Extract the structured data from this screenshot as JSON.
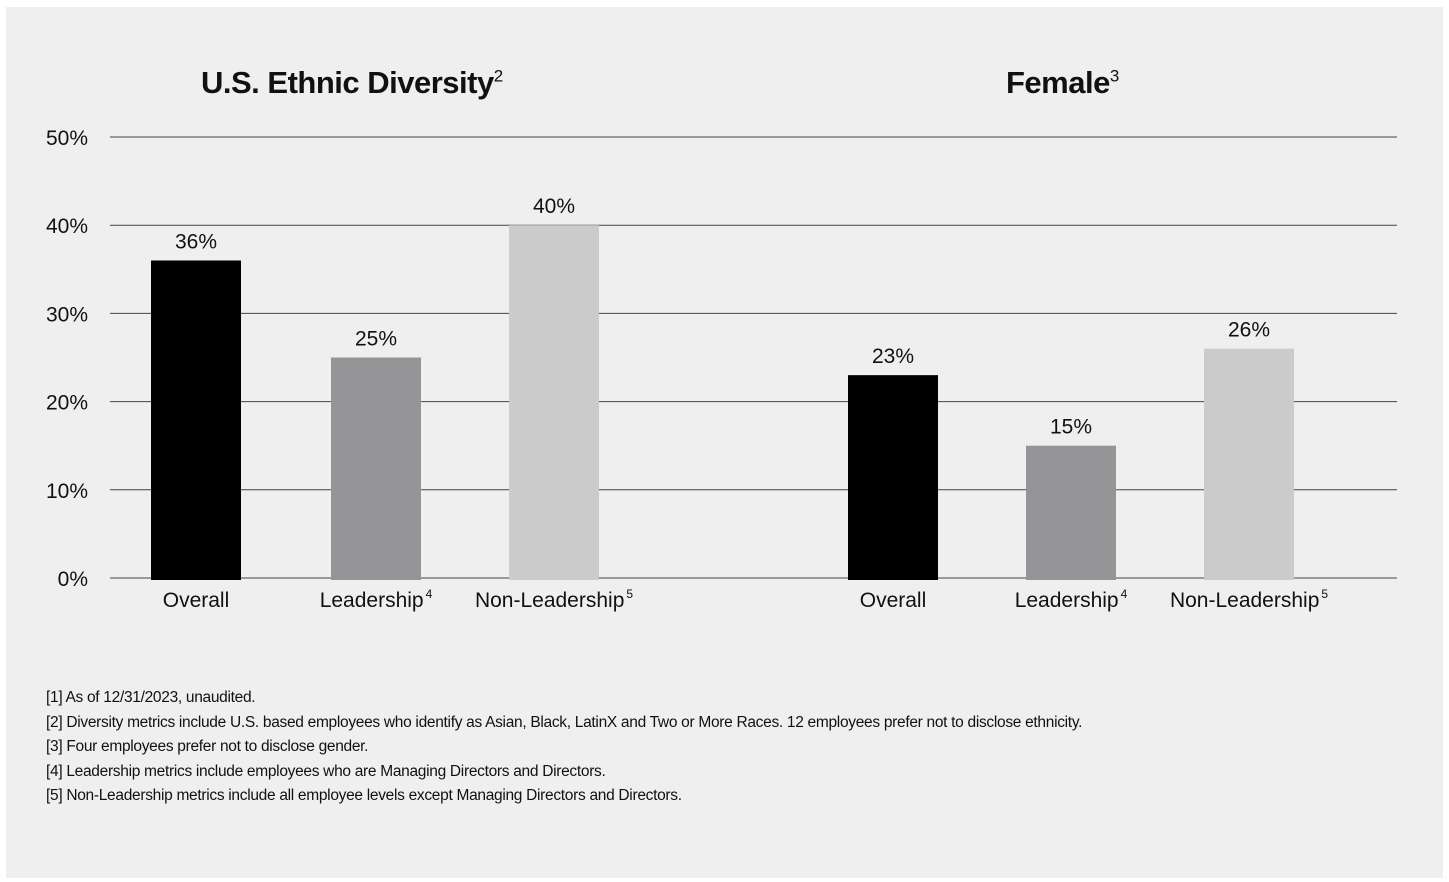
{
  "chart_data": [
    {
      "type": "bar",
      "title": "U.S. Ethnic Diversity",
      "title_superscript": "2",
      "categories": [
        "Overall",
        "Leadership",
        "Non-Leadership"
      ],
      "category_superscripts": [
        "",
        "4",
        "5"
      ],
      "values": [
        36,
        25,
        40
      ],
      "value_labels": [
        "36%",
        "25%",
        "40%"
      ],
      "bar_colors": [
        "#000000",
        "#959597",
        "#cbcbcb"
      ],
      "xlabel": "",
      "ylabel": "",
      "ylim": [
        0,
        50
      ],
      "yticks": [
        "0%",
        "10%",
        "20%",
        "30%",
        "40%",
        "50%"
      ],
      "grid": true
    },
    {
      "type": "bar",
      "title": "Female",
      "title_superscript": "3",
      "categories": [
        "Overall",
        "Leadership",
        "Non-Leadership"
      ],
      "category_superscripts": [
        "",
        "4",
        "5"
      ],
      "values": [
        23,
        15,
        26
      ],
      "value_labels": [
        "23%",
        "15%",
        "26%"
      ],
      "bar_colors": [
        "#000000",
        "#959597",
        "#cbcbcb"
      ],
      "xlabel": "",
      "ylabel": "",
      "ylim": [
        0,
        50
      ],
      "grid": true
    }
  ],
  "footnotes": [
    "[1] As of 12/31/2023, unaudited.",
    "[2] Diversity metrics include U.S. based employees who identify as Asian, Black, LatinX and Two or More Races. 12 employees prefer not to disclose ethnicity.",
    "[3] Four employees prefer not to disclose gender.",
    "[4] Leadership metrics include employees who are Managing Directors and Directors.",
    "[5] Non-Leadership metrics include all employee levels except Managing Directors and Directors."
  ]
}
